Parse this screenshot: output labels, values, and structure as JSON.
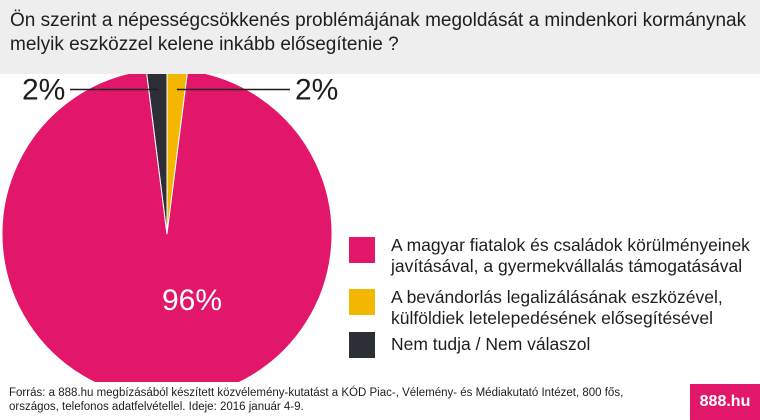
{
  "title": "Ön szerint a népességcsökkenés problémájának megoldását a mindenkori kormánynak melyik eszközzel kelene inkább elősegítenie ?",
  "chart_data": {
    "type": "pie",
    "title": "Ön szerint a népességcsökkenés problémájának megoldását a mindenkori kormánynak melyik eszközzel kelene inkább elősegítenie ?",
    "slices": [
      {
        "label": "A magyar fiatalok és családok körülményeinek javításával, a gyermekvállalás támogatásával",
        "value": 96,
        "value_label": "96%",
        "color": "#e2176a"
      },
      {
        "label": "A bevándorlás legalizálásának eszközével, külföldiek letelepedésének elősegítésével",
        "value": 2,
        "value_label": "2%",
        "color": "#f3b700"
      },
      {
        "label": "Nem tudja / Nem válaszol",
        "value": 2,
        "value_label": "2%",
        "color": "#2c2f36"
      }
    ],
    "legend_position": "right"
  },
  "footer": {
    "source": "Forrás: a 888.hu megbízásából készített közvélemény-kutatást a KÓD Piac-, Vélemény- és Médiakutató Intézet, 800 fős, országos, telefonos adatfelvétellel. Ideje: 2016 január 4-9.",
    "brand": "888.hu",
    "brand_color": "#e2176a"
  }
}
